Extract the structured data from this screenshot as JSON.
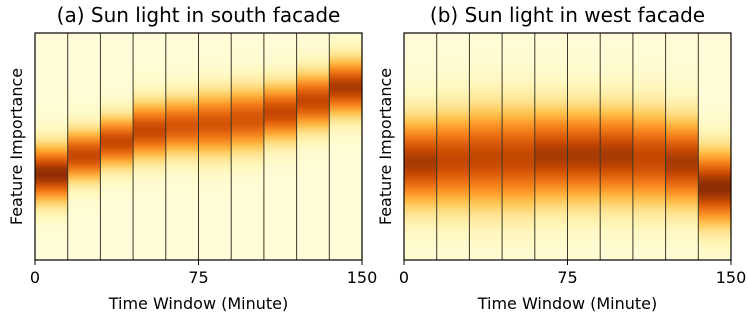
{
  "chart_data": [
    {
      "type": "heatmap",
      "title": "(a) Sun light in south facade",
      "xlabel": "Time Window (Minute)",
      "ylabel": "Feature Importance",
      "xlim": [
        0,
        150
      ],
      "xticks": [
        "0",
        "75",
        "150"
      ],
      "grid": false,
      "colormap": "YlOrBr",
      "window_edges": [
        0,
        15,
        30,
        45,
        60,
        75,
        90,
        105,
        120,
        135,
        150
      ],
      "peak_position": [
        0.38,
        0.46,
        0.52,
        0.57,
        0.59,
        0.6,
        0.62,
        0.65,
        0.7,
        0.76
      ],
      "peak_spread": [
        0.09,
        0.08,
        0.08,
        0.09,
        0.09,
        0.1,
        0.1,
        0.09,
        0.09,
        0.09
      ],
      "peak_intensity": [
        0.95,
        0.85,
        0.85,
        0.85,
        0.8,
        0.8,
        0.8,
        0.85,
        0.85,
        0.9
      ]
    },
    {
      "type": "heatmap",
      "title": "(b) Sun light in west facade",
      "xlabel": "Time Window (Minute)",
      "ylabel": "Feature Importance",
      "xlim": [
        0,
        150
      ],
      "xticks": [
        "0",
        "75",
        "150"
      ],
      "grid": false,
      "colormap": "YlOrBr",
      "window_edges": [
        0,
        15,
        30,
        45,
        60,
        75,
        90,
        105,
        120,
        135,
        150
      ],
      "peak_position": [
        0.43,
        0.44,
        0.45,
        0.45,
        0.46,
        0.46,
        0.46,
        0.45,
        0.43,
        0.32
      ],
      "peak_spread": [
        0.14,
        0.15,
        0.16,
        0.16,
        0.15,
        0.15,
        0.15,
        0.15,
        0.14,
        0.12
      ],
      "peak_intensity": [
        0.9,
        0.85,
        0.85,
        0.85,
        0.9,
        0.9,
        0.9,
        0.85,
        0.9,
        0.95
      ]
    }
  ]
}
